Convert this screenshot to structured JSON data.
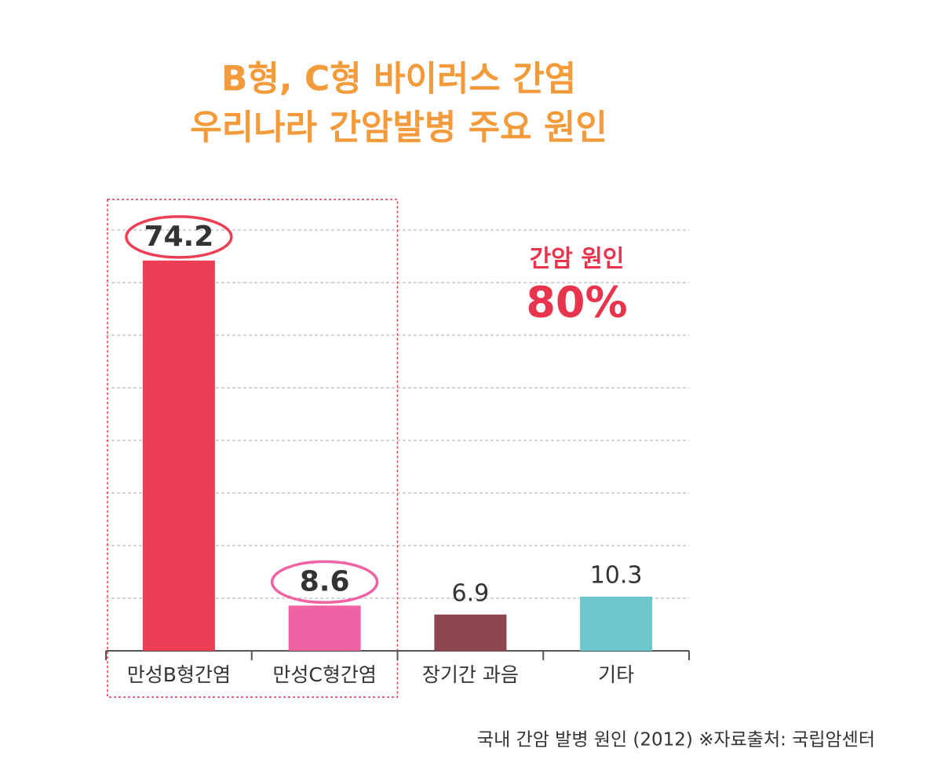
{
  "chart_data": {
    "type": "bar",
    "title": [
      "B형, C형 바이러스 간염",
      "우리나라 간암발병 주요 원인"
    ],
    "categories": [
      "만성B형간염",
      "만성C형간염",
      "장기간 과음",
      "기타"
    ],
    "values": [
      74.2,
      8.6,
      6.9,
      10.3
    ],
    "colors": [
      "#ee3e55",
      "#ef62a3",
      "#8b4650",
      "#6cc8cc"
    ],
    "highlight": [
      true,
      true,
      false,
      false
    ],
    "ylim": [
      0,
      80
    ],
    "yticks": [
      0,
      10,
      20,
      30,
      40,
      50,
      60,
      70,
      80
    ],
    "grid": true,
    "annotation": [
      "간암 원인",
      "80%"
    ],
    "note": "국내 간암 발병 원인 (2012) ※자료출처: 국립암센터"
  }
}
